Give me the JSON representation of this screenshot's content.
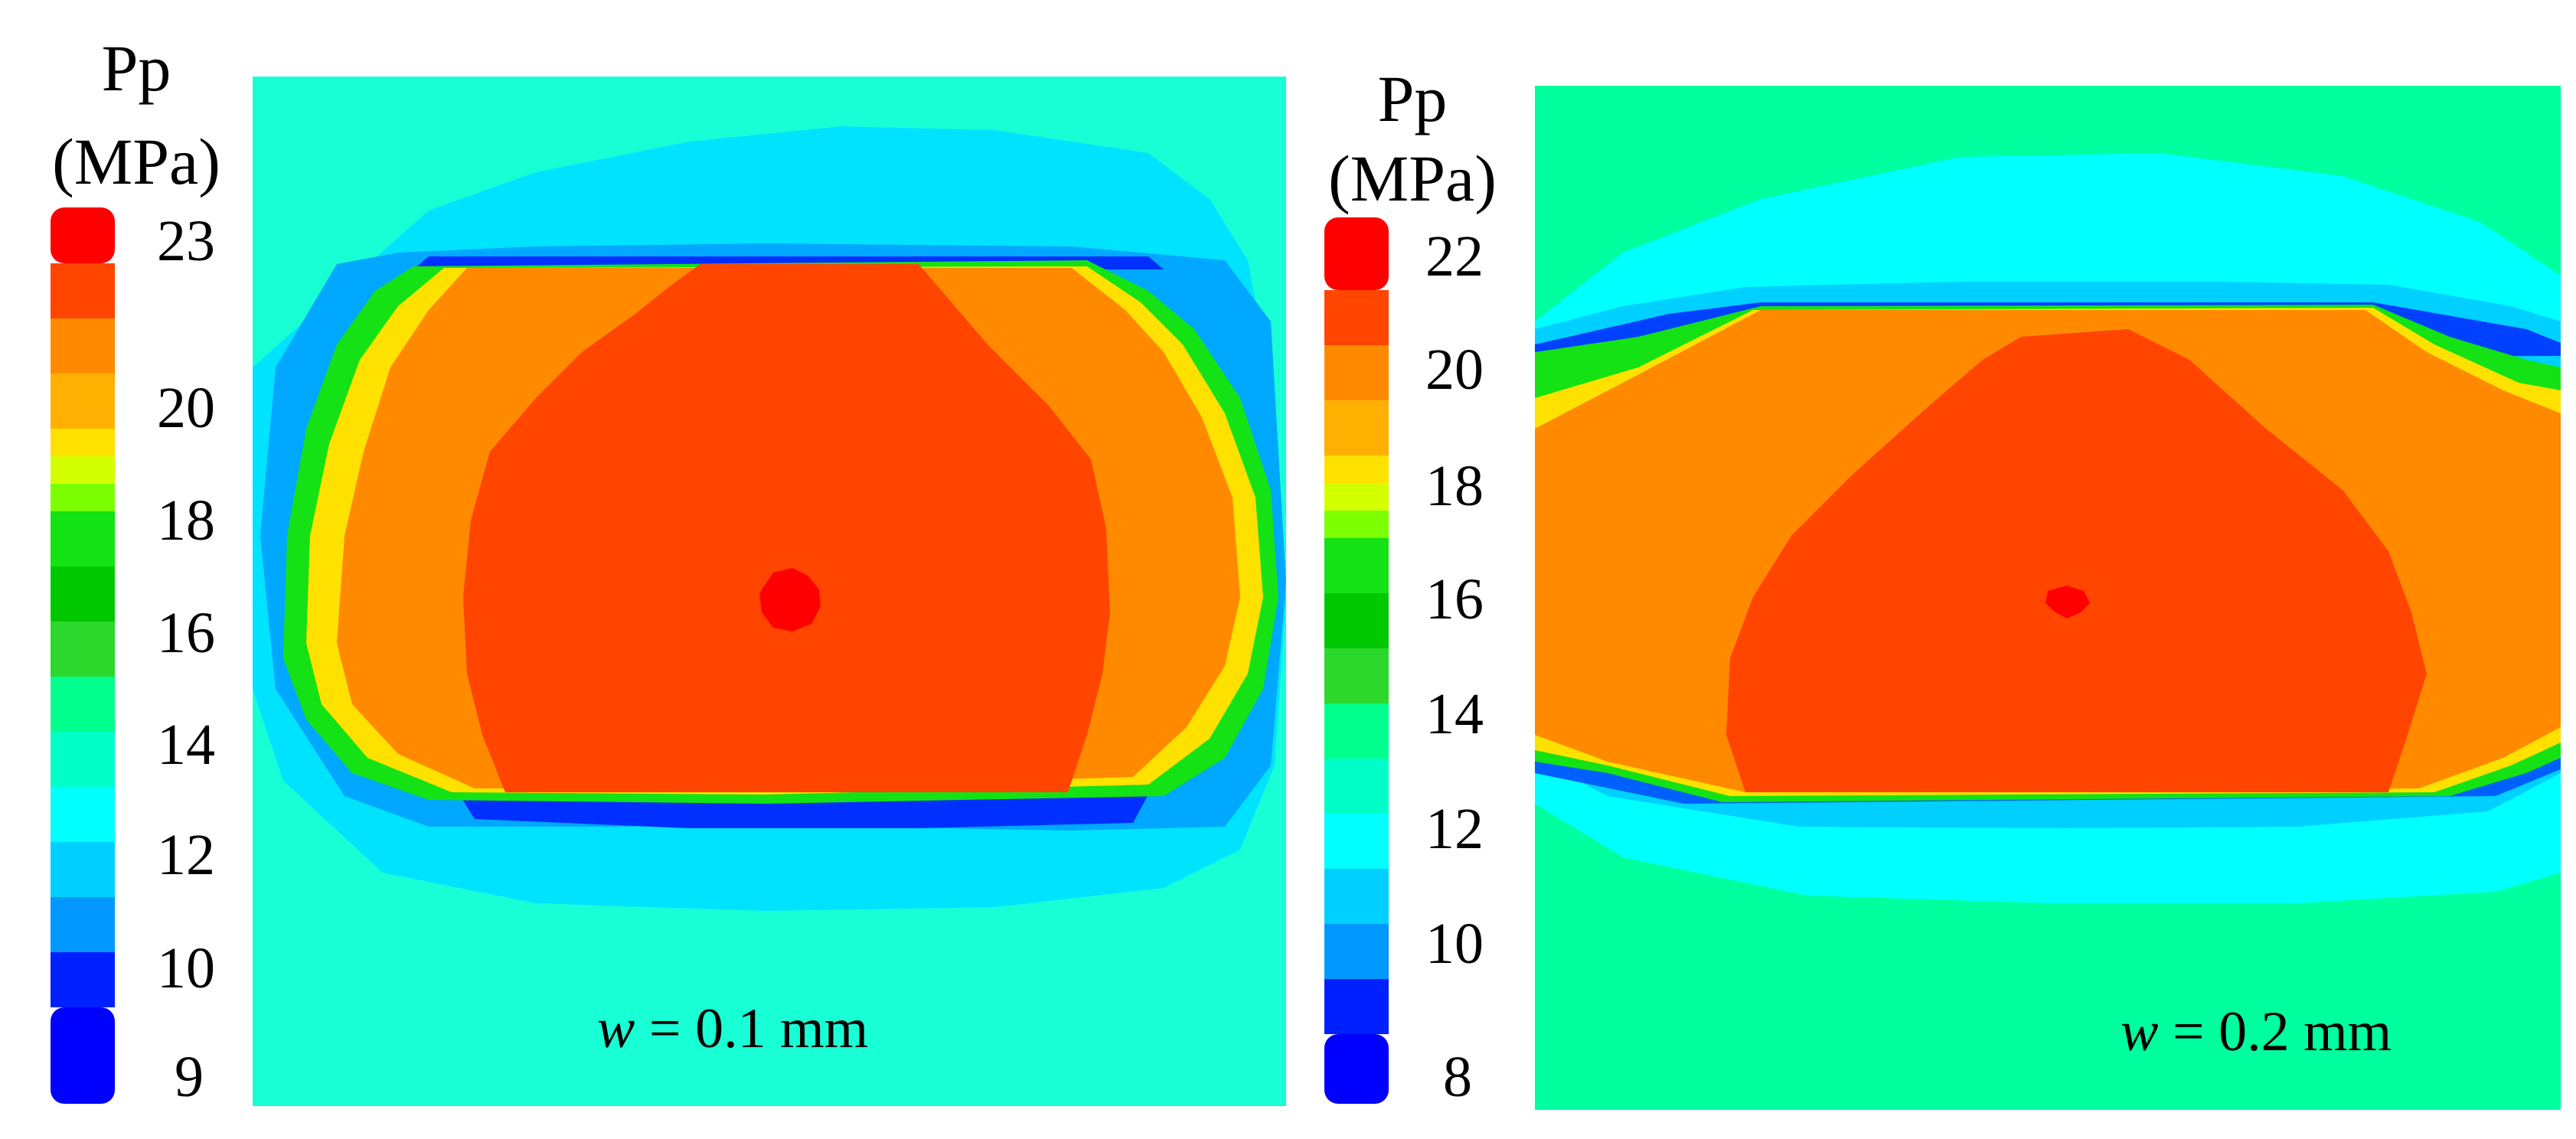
{
  "chart_data": [
    {
      "type": "heatmap",
      "title": "",
      "legend_title_line1": "Pp",
      "legend_title_line2": "(MPa)",
      "legend_levels": [
        23,
        22,
        21,
        20,
        19,
        18,
        17,
        16,
        15,
        14,
        13,
        12,
        11,
        10,
        9
      ],
      "tick_labels": [
        "23",
        "20",
        "18",
        "16",
        "14",
        "12",
        "10",
        "9"
      ],
      "annotation_var": "w",
      "annotation_rest": " = 0.1 mm",
      "value_range": [
        9,
        23
      ],
      "peak_value": 23,
      "background_value": 13
    },
    {
      "type": "heatmap",
      "title": "",
      "legend_title_line1": "Pp",
      "legend_title_line2": "(MPa)",
      "legend_levels": [
        22,
        21,
        20,
        19,
        18,
        17,
        16,
        15,
        14,
        13,
        12,
        11,
        10,
        9,
        8
      ],
      "tick_labels": [
        "22",
        "20",
        "18",
        "16",
        "14",
        "12",
        "10",
        "8"
      ],
      "annotation_var": "w",
      "annotation_rest": " = 0.2 mm",
      "value_range": [
        8,
        22
      ],
      "peak_value": 22,
      "background_value": 14
    }
  ],
  "colors": {
    "red": "#ff0000",
    "red_orange": "#ff4500",
    "orange": "#ff8a00",
    "amber": "#ffb000",
    "yellow": "#ffe100",
    "yellow_green": "#d4ff00",
    "light_green": "#7cff00",
    "green": "#14e214",
    "green2": "#2cd82c",
    "spring_green": "#00ff8c",
    "aquamarine": "#00ffc8",
    "cyan": "#00ffff",
    "sky": "#00d0ff",
    "blue_light": "#0098ff",
    "blue": "#0064ff",
    "blue_dark": "#0020ff",
    "deep_blue": "#0000ff",
    "panel1_background": "#18ffd6",
    "panel2_background": "#00ff9e"
  }
}
